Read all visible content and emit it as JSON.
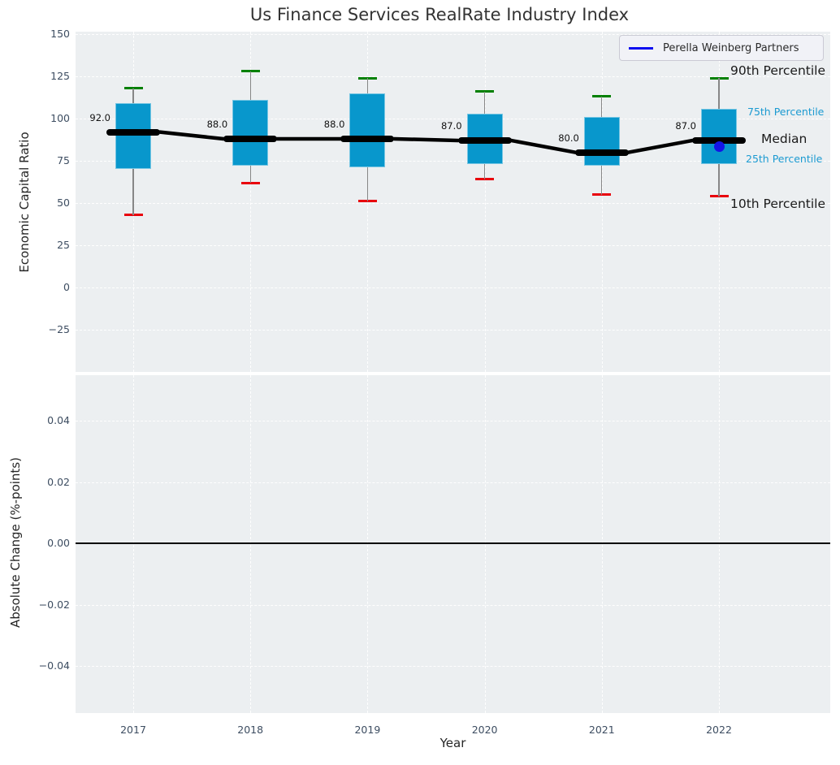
{
  "title": "Us Finance Services RealRate Industry Index",
  "legend": {
    "label": "Perella Weinberg Partners",
    "line_color": "#0d0df0"
  },
  "percentile_labels": {
    "p90": "90th Percentile",
    "p75": "75th Percentile",
    "median": "Median",
    "p25": "25th Percentile",
    "p10": "10th Percentile"
  },
  "colors": {
    "box_fill": "#0897cc",
    "cap_top": "#008000",
    "cap_bottom": "#e8000d",
    "median_line": "#000000",
    "whisker": "#878787",
    "highlight_dot": "#1414e6",
    "axes_background": "#eceff1",
    "tick_label": "#3d4d61",
    "percentile_small_label": "#1b9ad1"
  },
  "chart_data": [
    {
      "type": "boxplot",
      "title": "Us Finance Services RealRate Industry Index",
      "xlabel": "Year",
      "ylabel": "Economic Capital Ratio",
      "categories": [
        "2017",
        "2018",
        "2019",
        "2020",
        "2021",
        "2022"
      ],
      "ytick_values": [
        150,
        125,
        100,
        75,
        50,
        25,
        0,
        -25
      ],
      "ytick_labels": [
        "150",
        "125",
        "100",
        "75",
        "50",
        "25",
        "0",
        "−25"
      ],
      "ylim": [
        -50,
        151
      ],
      "grid": true,
      "legend_position": "upper right",
      "series": [
        {
          "name": "90th Percentile",
          "values": [
            118,
            128,
            124,
            116,
            113,
            124
          ]
        },
        {
          "name": "75th Percentile",
          "values": [
            109,
            111,
            115,
            103,
            101,
            106
          ]
        },
        {
          "name": "Median",
          "values": [
            92,
            88,
            88,
            87,
            80,
            87
          ]
        },
        {
          "name": "25th Percentile",
          "values": [
            70,
            72,
            71,
            73,
            72,
            73
          ]
        },
        {
          "name": "10th Percentile",
          "values": [
            43,
            62,
            51,
            64,
            55,
            54
          ]
        }
      ],
      "median_labels": [
        "92.0",
        "88.0",
        "88.0",
        "87.0",
        "80.0",
        "87.0"
      ],
      "highlight_point": {
        "name": "Perella Weinberg Partners",
        "category": "2022",
        "value": 84
      }
    },
    {
      "type": "line",
      "xlabel": "Year",
      "ylabel": "Absolute Change (%-points)",
      "categories": [
        "2017",
        "2018",
        "2019",
        "2020",
        "2021",
        "2022"
      ],
      "ytick_values": [
        0.04,
        0.02,
        0,
        -0.02,
        -0.04
      ],
      "ytick_labels": [
        "0.04",
        "0.02",
        "0.00",
        "−0.02",
        "−0.04"
      ],
      "ylim": [
        -0.055,
        0.055
      ],
      "zero_line": 0,
      "grid": true,
      "series": []
    }
  ]
}
